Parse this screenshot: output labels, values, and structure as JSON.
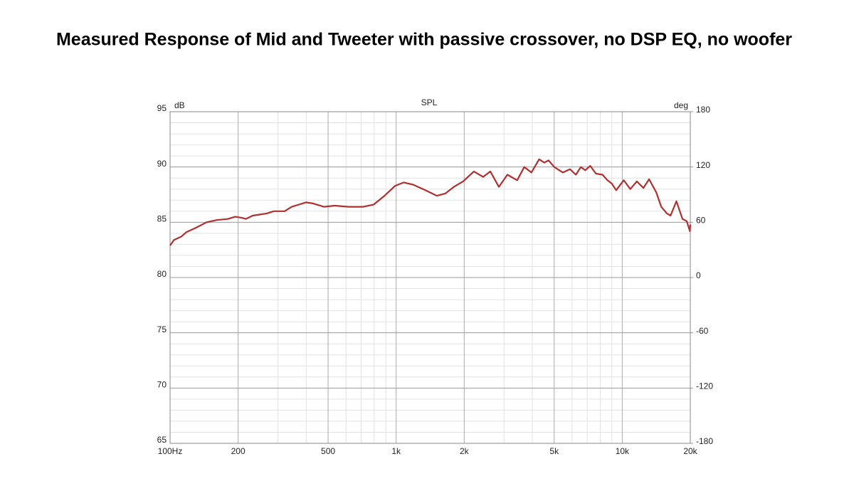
{
  "chart_data": {
    "type": "line",
    "title": "Measured Response of Mid and Tweeter with passive crossover, no DSP EQ, no woofer",
    "plot_title": "SPL",
    "ylabel": "dB",
    "y2label": "deg",
    "log_x": true,
    "grid": true,
    "color": "#b03030",
    "xlim": [
      100,
      20000
    ],
    "xticks": [
      {
        "value": 100,
        "label": "100Hz"
      },
      200,
      500,
      {
        "value": 1000,
        "label": "1k"
      },
      {
        "value": 2000,
        "label": "2k"
      },
      {
        "value": 5000,
        "label": "5k"
      },
      {
        "value": 10000,
        "label": "10k"
      },
      {
        "value": 20000,
        "label": "20k"
      }
    ],
    "xminorticks": [
      300,
      400,
      600,
      700,
      800,
      900,
      3000,
      4000,
      6000,
      7000,
      8000,
      9000
    ],
    "ylim": [
      65,
      95
    ],
    "yticks": [
      65,
      70,
      75,
      80,
      85,
      90,
      95
    ],
    "yminorticks": [
      66,
      67,
      68,
      69,
      71,
      72,
      73,
      74,
      76,
      77,
      78,
      79,
      81,
      82,
      83,
      84,
      86,
      87,
      88,
      89,
      91,
      92,
      93,
      94
    ],
    "y2lim": [
      -180,
      180
    ],
    "y2ticks": [
      -180,
      -120,
      -60,
      0,
      60,
      120,
      180
    ],
    "x": [
      100,
      104,
      112,
      118,
      130,
      145,
      161,
      180,
      194,
      208,
      216,
      232,
      249,
      268,
      288,
      321,
      345,
      371,
      399,
      429,
      479,
      534,
      617,
      714,
      795,
      888,
      990,
      1080,
      1188,
      1346,
      1513,
      1650,
      1800,
      1977,
      2207,
      2425,
      2609,
      2847,
      3104,
      3430,
      3688,
      3963,
      4291,
      4518,
      4720,
      5002,
      5462,
      5877,
      6234,
      6560,
      6858,
      7219,
      7652,
      8177,
      8602,
      8989,
      9395,
      10158,
      10857,
      11606,
      12406,
      13150,
      14140,
      14880,
      15760,
      16350,
      17360,
      18470,
      19290,
      19910,
      20000
    ],
    "values": [
      82.9,
      83.4,
      83.7,
      84.1,
      84.5,
      85.0,
      85.2,
      85.3,
      85.5,
      85.4,
      85.3,
      85.6,
      85.7,
      85.8,
      86.0,
      86.0,
      86.4,
      86.6,
      86.8,
      86.7,
      86.4,
      86.5,
      86.4,
      86.4,
      86.6,
      87.4,
      88.3,
      88.6,
      88.4,
      87.9,
      87.4,
      87.6,
      88.2,
      88.7,
      89.6,
      89.1,
      89.6,
      88.2,
      89.3,
      88.8,
      90.0,
      89.5,
      90.7,
      90.4,
      90.6,
      90.0,
      89.5,
      89.8,
      89.3,
      90.0,
      89.7,
      90.1,
      89.4,
      89.3,
      88.8,
      88.5,
      87.9,
      88.8,
      88.0,
      88.7,
      88.1,
      88.9,
      87.7,
      86.4,
      85.8,
      85.6,
      86.9,
      85.3,
      85.1,
      84.2,
      84.8
    ]
  }
}
